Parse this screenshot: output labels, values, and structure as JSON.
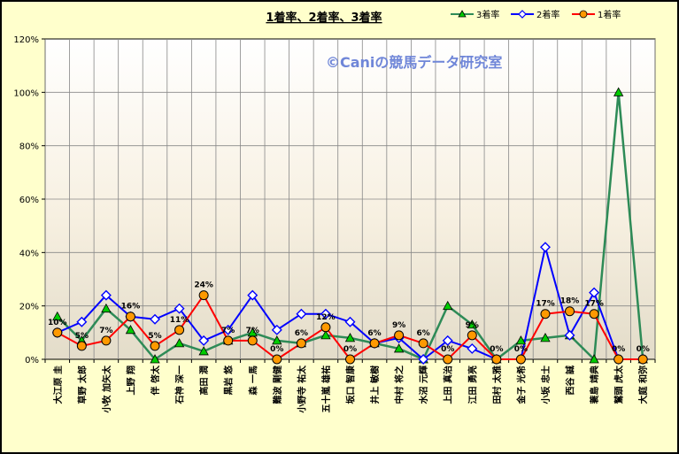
{
  "watermark": "©Caniの競馬データ研究室",
  "colors": {
    "s3": "#2e8b57",
    "s2": "#0000ff",
    "s1": "#ff0000",
    "marker3": "#00cc00",
    "marker2": "#ffffff",
    "marker1": "#ff9900",
    "watermark": "#6f86d8"
  },
  "chart_data": {
    "type": "line",
    "title": "1着率、2着率、3着率",
    "ylim": [
      0,
      120
    ],
    "yticks": [
      "0%",
      "20%",
      "40%",
      "60%",
      "80%",
      "100%",
      "120%"
    ],
    "grid": true,
    "legend_position": "top-right",
    "categories": [
      "大江原 圭",
      "草野 太郎",
      "小牧 加矢太",
      "上野 翔",
      "伴 啓太",
      "石神 深一",
      "高田 潤",
      "黒岩 悠",
      "森 一馬",
      "難波 剛健",
      "小野寺 祐太",
      "五十嵐 雄祐",
      "坂口 智康",
      "井上 敏樹",
      "中村 将之",
      "水沼 元輝",
      "上田 真治",
      "江田 勇亮",
      "田村 太雅",
      "金子 光希",
      "小坂 忠士",
      "西谷 誠",
      "蓑島 靖典",
      "鷲頭 虎太",
      "大庭 和弥"
    ],
    "series": [
      {
        "name": "3着率",
        "values": [
          16,
          7,
          19,
          11,
          0,
          6,
          3,
          7,
          10,
          7,
          6,
          9,
          8,
          6,
          4,
          0,
          20,
          13,
          0,
          7,
          8,
          9,
          0,
          100,
          0
        ]
      },
      {
        "name": "2着率",
        "values": [
          10,
          14,
          24,
          16,
          15,
          19,
          7,
          11,
          24,
          11,
          17,
          17,
          14,
          6,
          8,
          0,
          7,
          4,
          0,
          0,
          42,
          9,
          25,
          0,
          0
        ]
      },
      {
        "name": "1着率",
        "values": [
          10,
          5,
          7,
          16,
          5,
          11,
          24,
          7,
          7,
          0,
          6,
          12,
          0,
          6,
          9,
          6,
          0,
          9,
          0,
          0,
          17,
          18,
          17,
          0,
          0
        ]
      }
    ],
    "data_labels": [
      "10%",
      "5%",
      "7%",
      "16%",
      "5%",
      "11%",
      "24%",
      "7%",
      "7%",
      "0%",
      "6%",
      "12%",
      "0%",
      "6%",
      "9%",
      "6%",
      "0%",
      "9%",
      "0%",
      "0%",
      "17%",
      "18%",
      "17%",
      "0%",
      "0%"
    ]
  }
}
